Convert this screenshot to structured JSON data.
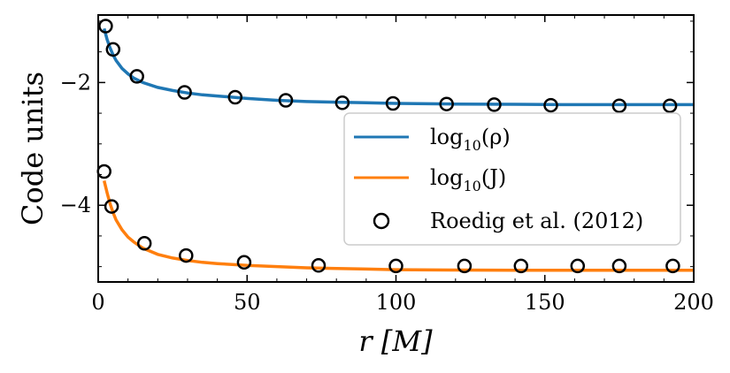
{
  "chart_data": {
    "type": "line",
    "title": "",
    "xlabel": "r  [M]",
    "ylabel": "Code units",
    "xlim": [
      0,
      200
    ],
    "ylim": [
      -5.25,
      -0.9
    ],
    "x_ticks": [
      0,
      50,
      100,
      150,
      200
    ],
    "x_tick_labels": [
      "0",
      "50",
      "100",
      "150",
      "200"
    ],
    "y_ticks": [
      -2,
      -4
    ],
    "y_tick_labels": [
      "−2",
      "−4"
    ],
    "grid": false,
    "legend_position": "center-right",
    "series": [
      {
        "name": "log10(rho)",
        "label_main": "log",
        "label_sub": "10",
        "label_arg": "(ρ)",
        "kind": "line",
        "color": "#1f77b4",
        "x": [
          2,
          3,
          4,
          5,
          6,
          8,
          10,
          12,
          15,
          20,
          25,
          30,
          35,
          40,
          50,
          60,
          70,
          80,
          90,
          100,
          120,
          140,
          160,
          180,
          200
        ],
        "y": [
          -1.12,
          -1.3,
          -1.44,
          -1.55,
          -1.64,
          -1.77,
          -1.86,
          -1.93,
          -2.0,
          -2.08,
          -2.13,
          -2.17,
          -2.2,
          -2.22,
          -2.26,
          -2.29,
          -2.31,
          -2.32,
          -2.33,
          -2.34,
          -2.35,
          -2.355,
          -2.36,
          -2.36,
          -2.36
        ]
      },
      {
        "name": "log10(J)",
        "label_main": "log",
        "label_sub": "10",
        "label_arg": "(J)",
        "kind": "line",
        "color": "#ff7f0e",
        "x": [
          2,
          3,
          4,
          5,
          6,
          8,
          10,
          12,
          15,
          20,
          25,
          30,
          35,
          40,
          50,
          60,
          70,
          80,
          90,
          100,
          120,
          140,
          160,
          180,
          200
        ],
        "y": [
          -3.6,
          -3.8,
          -3.98,
          -4.12,
          -4.24,
          -4.4,
          -4.52,
          -4.6,
          -4.7,
          -4.8,
          -4.86,
          -4.9,
          -4.93,
          -4.95,
          -4.98,
          -5.0,
          -5.02,
          -5.03,
          -5.04,
          -5.05,
          -5.055,
          -5.06,
          -5.06,
          -5.06,
          -5.06
        ]
      },
      {
        "name": "Roedig et al. (2012)",
        "label_main": "Roedig et al. (2012)",
        "kind": "scatter",
        "color": "#000000",
        "x": [
          2.5,
          5,
          13,
          29,
          46,
          63,
          82,
          99,
          117,
          133,
          152,
          175,
          192,
          2,
          4.5,
          15.5,
          29.5,
          49,
          74,
          100,
          123,
          142,
          161,
          175,
          193
        ],
        "y": [
          -1.08,
          -1.46,
          -1.9,
          -2.16,
          -2.24,
          -2.29,
          -2.33,
          -2.34,
          -2.35,
          -2.36,
          -2.37,
          -2.38,
          -2.38,
          -3.45,
          -4.02,
          -4.62,
          -4.82,
          -4.93,
          -4.98,
          -4.99,
          -4.99,
          -4.99,
          -4.99,
          -4.99,
          -4.99
        ]
      }
    ]
  }
}
